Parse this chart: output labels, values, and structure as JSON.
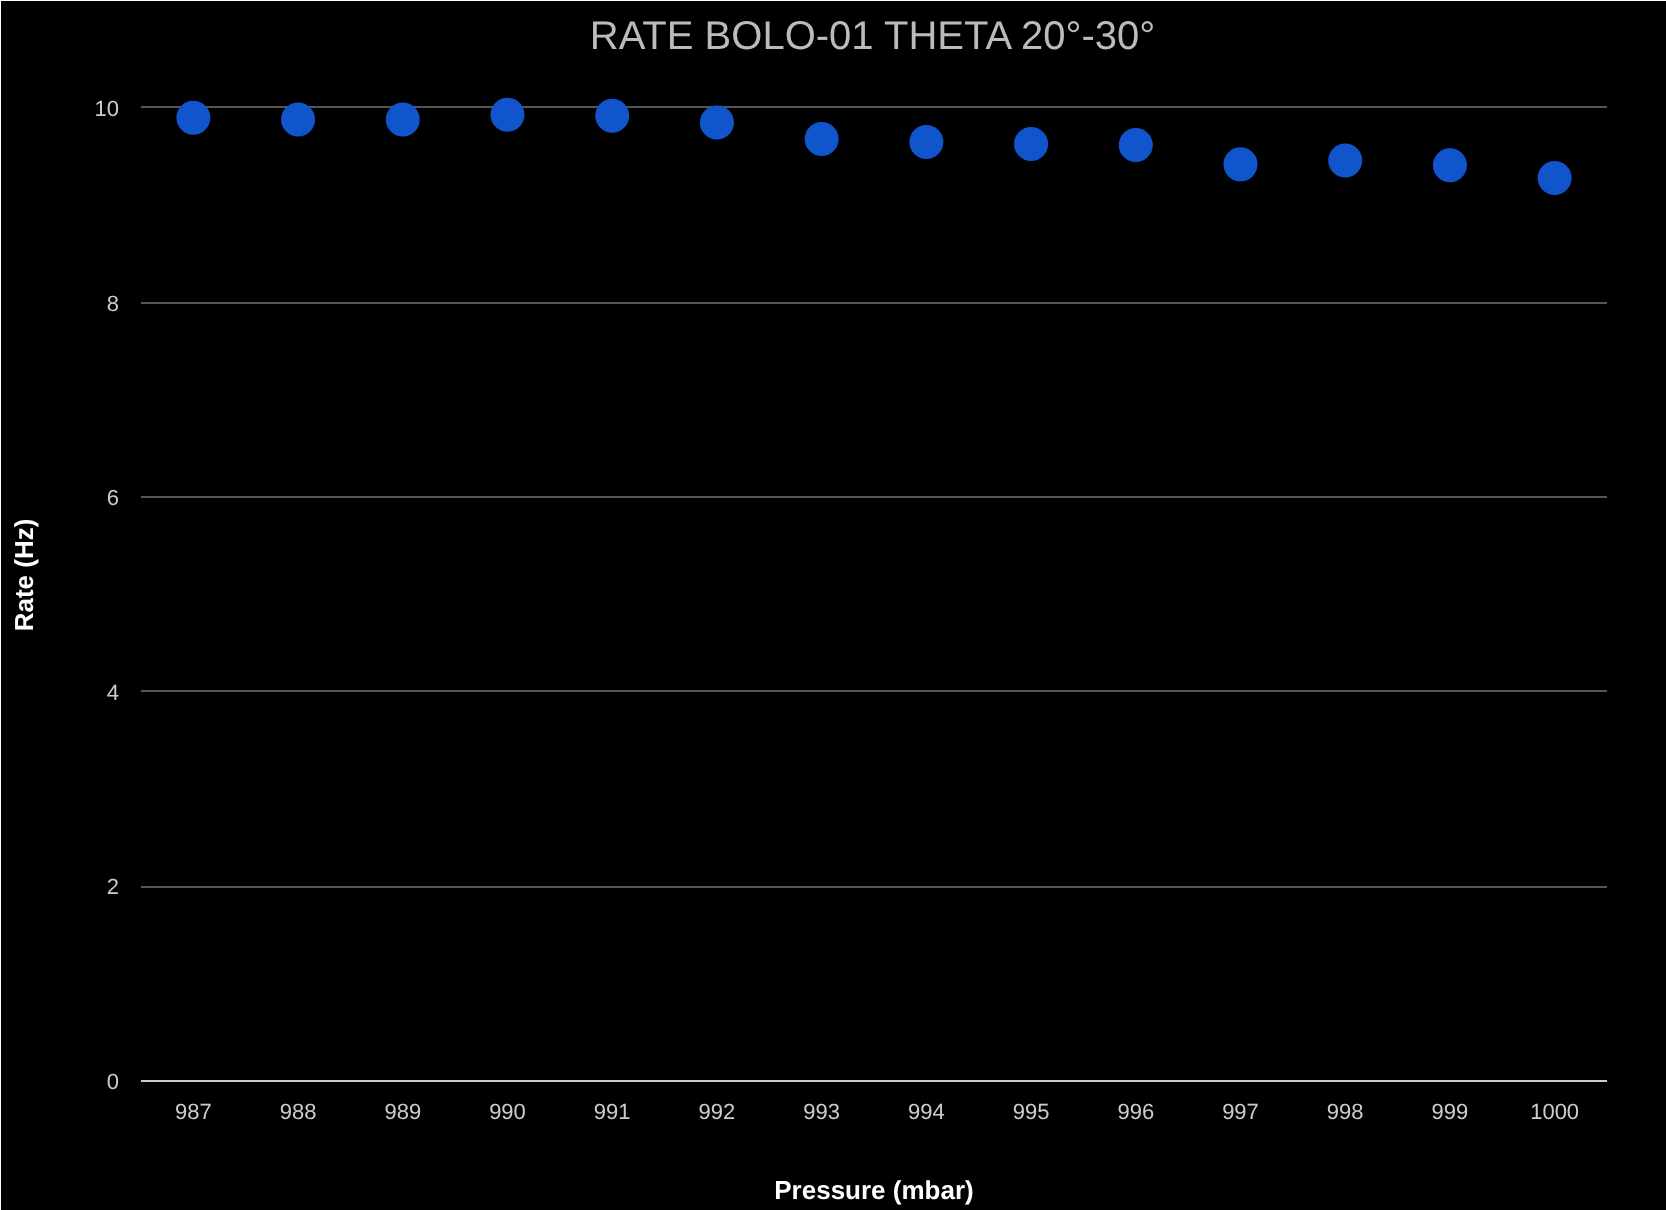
{
  "chart_data": {
    "type": "scatter",
    "title": "RATE BOLO-01 THETA 20°-30°",
    "xlabel": "Pressure (mbar)",
    "ylabel": "Rate (Hz)",
    "x": [
      987,
      988,
      989,
      990,
      991,
      992,
      993,
      994,
      995,
      996,
      997,
      998,
      999,
      1000
    ],
    "series": [
      {
        "color": "#1155cc",
        "values": [
          9.9,
          9.88,
          9.88,
          9.93,
          9.92,
          9.85,
          9.68,
          9.65,
          9.63,
          9.62,
          9.42,
          9.46,
          9.41,
          9.28
        ]
      }
    ],
    "xlim": [
      986.5,
      1000.5
    ],
    "xticks": [
      987,
      988,
      989,
      990,
      991,
      992,
      993,
      994,
      995,
      996,
      997,
      998,
      999,
      1000
    ],
    "ylim": [
      0,
      10.4
    ],
    "yticks": [
      0,
      2,
      4,
      6,
      8,
      10
    ],
    "grid": "y",
    "marker": "circle"
  }
}
